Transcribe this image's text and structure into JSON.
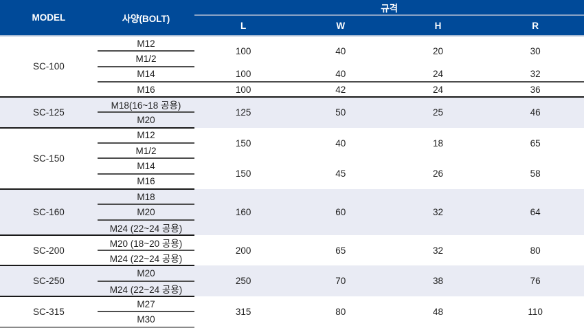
{
  "table": {
    "header": {
      "model": "MODEL",
      "spec_bolt": "사양(BOLT)",
      "standard": "규격",
      "dims": [
        "L",
        "W",
        "H",
        "R"
      ]
    },
    "colors": {
      "header_bg": "#004a99",
      "header_text": "#ffffff",
      "standard_underline": "#8aa3c5",
      "header_bottom_border": "#a6bad3",
      "shaded_section_bg": "#e9ebf4",
      "body_text": "#1d1d1d",
      "minor_divider": "#4d4d4d",
      "section_divider": "#1a1a1a",
      "table_bottom_border": "#8a8a8a"
    },
    "sections": [
      {
        "model": "SC-100",
        "shaded": false,
        "groups": [
          {
            "bolts": [
              "M12",
              "M1/2"
            ],
            "dims": [
              100,
              40,
              20,
              30
            ]
          },
          {
            "bolts": [
              "M14"
            ],
            "dims": [
              100,
              40,
              24,
              32
            ]
          },
          {
            "bolts": [
              "M16"
            ],
            "dims": [
              100,
              42,
              24,
              36
            ]
          }
        ]
      },
      {
        "model": "SC-125",
        "shaded": true,
        "groups": [
          {
            "bolts": [
              "M18(16~18 공용)",
              "M20"
            ],
            "dims": [
              125,
              50,
              25,
              46
            ]
          }
        ]
      },
      {
        "model": "SC-150",
        "shaded": false,
        "groups": [
          {
            "bolts": [
              "M12",
              "M1/2"
            ],
            "dims": [
              150,
              40,
              18,
              65
            ]
          },
          {
            "bolts": [
              "M14",
              "M16"
            ],
            "dims": [
              150,
              45,
              26,
              58
            ]
          }
        ]
      },
      {
        "model": "SC-160",
        "shaded": true,
        "groups": [
          {
            "bolts": [
              "M18",
              "M20",
              "M24 (22~24 공용)"
            ],
            "dims": [
              160,
              60,
              32,
              64
            ]
          }
        ]
      },
      {
        "model": "SC-200",
        "shaded": false,
        "groups": [
          {
            "bolts": [
              "M20 (18~20 공용)",
              "M24 (22~24 공용)"
            ],
            "dims": [
              200,
              65,
              32,
              80
            ]
          }
        ]
      },
      {
        "model": "SC-250",
        "shaded": true,
        "groups": [
          {
            "bolts": [
              "M20",
              "M24 (22~24 공용)"
            ],
            "dims": [
              250,
              70,
              38,
              76
            ]
          }
        ]
      },
      {
        "model": "SC-315",
        "shaded": false,
        "groups": [
          {
            "bolts": [
              "M27",
              "M30"
            ],
            "dims": [
              315,
              80,
              48,
              110
            ]
          }
        ]
      }
    ]
  }
}
